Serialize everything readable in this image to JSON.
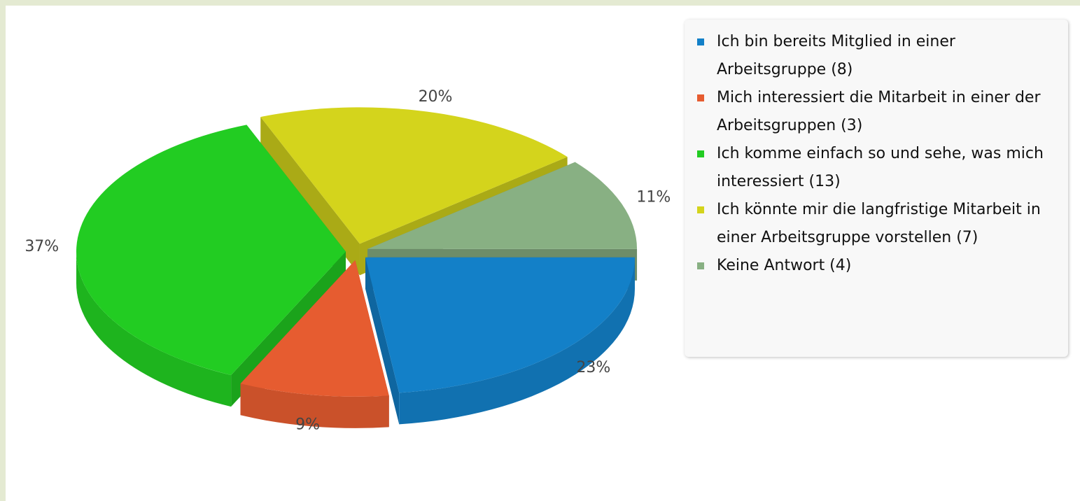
{
  "chart_data": {
    "type": "pie",
    "categories": [
      "Ich bin bereits Mitglied in einer Arbeitsgruppe (8)",
      "Mich interessiert die Mitarbeit in einer der Arbeitsgruppen (3)",
      "Ich komme einfach so und sehe, was mich interessiert (13)",
      "Ich könnte mir die langfristige Mitarbeit in einer Arbeitsgruppe vorstellen (7)",
      "Keine Antwort (4)"
    ],
    "values": [
      23,
      9,
      37,
      20,
      11
    ],
    "value_labels": [
      "23%",
      "9%",
      "37%",
      "20%",
      "11%"
    ],
    "colors": [
      "#1380c8",
      "#e65c30",
      "#22cc22",
      "#d4d41c",
      "#88b083"
    ],
    "legend": "right"
  }
}
